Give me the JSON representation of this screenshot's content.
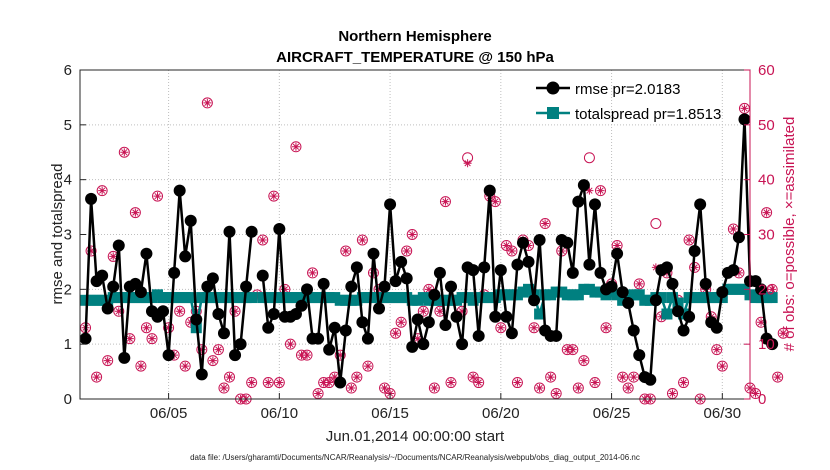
{
  "chart_data": {
    "type": "line",
    "title": "Northern Hemisphere",
    "subtitle": "AIRCRAFT_TEMPERATURE @ 150 hPa",
    "xlabel": "Jun.01,2014 00:00:00 start",
    "ylabel": "rmse and totalspread",
    "ylabel_right": "# of obs: o=possible, ×=assimilated",
    "footnote": "data file: /Users/gharamti/Documents/NCAR/Reanalysis/~/Documents/NCAR/Reanalysis/webpub/obs_diag_output_2014-06.nc",
    "xlim": [
      1.0,
      31.25
    ],
    "ylim": [
      0,
      6
    ],
    "ylim_right": [
      0,
      60
    ],
    "x_ticks": [
      5,
      10,
      15,
      20,
      25,
      30
    ],
    "x_tick_labels": [
      "06/05",
      "06/10",
      "06/15",
      "06/20",
      "06/25",
      "06/30"
    ],
    "y_ticks": [
      0,
      1,
      2,
      3,
      4,
      5,
      6
    ],
    "y_tick_labels": [
      "0",
      "1",
      "2",
      "3",
      "4",
      "5",
      "6"
    ],
    "y_ticks_right": [
      0,
      10,
      20,
      30,
      40,
      50,
      60
    ],
    "y_tick_labels_right": [
      "0",
      "10",
      "20",
      "30",
      "40",
      "50",
      "60"
    ],
    "legend": {
      "position": "top-right",
      "entries": [
        "rmse pr=2.0183",
        "totalspread pr=1.8513"
      ]
    },
    "colors": {
      "rmse": "#000000",
      "totalspread": "#008080",
      "obs": "#c81454"
    },
    "step_days": 0.25,
    "x_start": 1.25,
    "series": [
      {
        "name": "rmse",
        "values": [
          1.1,
          3.65,
          2.15,
          2.25,
          1.65,
          2.05,
          2.8,
          0.75,
          2.05,
          2.1,
          1.95,
          2.65,
          1.6,
          1.5,
          1.6,
          0.8,
          2.3,
          3.8,
          2.6,
          3.25,
          1.45,
          0.45,
          2.05,
          2.2,
          1.55,
          1.2,
          3.05,
          0.8,
          1.0,
          2.05,
          3.05,
          null,
          2.25,
          1.3,
          1.55,
          3.1,
          1.5,
          1.5,
          1.55,
          1.7,
          2.0,
          1.1,
          1.1,
          2.1,
          0.9,
          1.3,
          0.3,
          1.25,
          2.05,
          2.4,
          1.4,
          1.1,
          2.65,
          1.65,
          2.05,
          3.55,
          2.15,
          2.5,
          2.2,
          0.95,
          1.45,
          1.0,
          1.4,
          1.9,
          2.3,
          1.35,
          2.05,
          1.5,
          1.0,
          2.4,
          2.35,
          1.15,
          2.4,
          3.8,
          1.5,
          2.35,
          1.5,
          1.2,
          2.45,
          2.85,
          2.5,
          1.8,
          2.9,
          1.25,
          1.15,
          1.15,
          2.9,
          2.85,
          2.3,
          3.6,
          3.9,
          2.45,
          3.55,
          2.3,
          2.0,
          2.05,
          2.65,
          1.95,
          1.75,
          1.25,
          0.8,
          0.4,
          0.35,
          1.8,
          2.35,
          2.4,
          2.1,
          1.6,
          1.25,
          1.5,
          2.7,
          3.55,
          2.1,
          1.4,
          1.3,
          1.95,
          2.3,
          2.35,
          2.95,
          5.1,
          2.15,
          2.15,
          2.0,
          1.1,
          1.0
        ]
      },
      {
        "name": "totalspread",
        "values": [
          1.8,
          1.8,
          1.8,
          1.8,
          1.8,
          1.85,
          1.85,
          1.85,
          1.85,
          1.85,
          1.85,
          1.85,
          1.85,
          1.9,
          1.85,
          1.85,
          1.85,
          1.85,
          1.85,
          1.85,
          1.3,
          1.85,
          1.85,
          1.85,
          1.85,
          1.85,
          1.85,
          1.85,
          1.85,
          1.85,
          1.85,
          null,
          1.85,
          1.85,
          1.85,
          1.85,
          1.85,
          1.85,
          1.85,
          1.85,
          1.85,
          1.85,
          1.85,
          1.85,
          1.85,
          1.85,
          1.8,
          1.8,
          1.8,
          1.8,
          1.85,
          1.85,
          1.85,
          1.85,
          1.85,
          1.85,
          1.85,
          1.85,
          1.85,
          1.8,
          1.8,
          1.85,
          1.8,
          1.8,
          1.8,
          1.8,
          1.8,
          1.8,
          1.85,
          1.85,
          1.8,
          1.85,
          1.85,
          1.85,
          1.85,
          1.9,
          1.9,
          1.9,
          1.9,
          1.95,
          2.0,
          1.9,
          1.55,
          1.9,
          1.9,
          1.95,
          1.95,
          1.9,
          1.9,
          1.9,
          2.0,
          2.0,
          1.95,
          1.95,
          1.9,
          1.95,
          1.9,
          1.8,
          1.8,
          1.9,
          1.9,
          1.8,
          1.8,
          1.85,
          1.85,
          1.55,
          1.85,
          1.75,
          1.55,
          1.85,
          1.85,
          1.85,
          1.85,
          1.85,
          1.85,
          1.85,
          2.0,
          2.0,
          2.0,
          2.0,
          1.9,
          1.85,
          1.85,
          1.85,
          1.85
        ]
      },
      {
        "name": "obs_possible",
        "axis": "right",
        "values": [
          13,
          27,
          4,
          38,
          7,
          26,
          16,
          45,
          11,
          34,
          6,
          13,
          11,
          37,
          16,
          13,
          8,
          16,
          6,
          14,
          16,
          9,
          54,
          7,
          9,
          2,
          4,
          16,
          0,
          0,
          3,
          19,
          29,
          3,
          37,
          3,
          20,
          10,
          46,
          8,
          8,
          23,
          1,
          3,
          3,
          4,
          8,
          27,
          2,
          4,
          29,
          6,
          23,
          20,
          2,
          1,
          12,
          14,
          27,
          30,
          11,
          16,
          20,
          2,
          16,
          36,
          3,
          18,
          16,
          44,
          4,
          3,
          19,
          37,
          36,
          13,
          28,
          27,
          3,
          29,
          28,
          13,
          2,
          32,
          4,
          1,
          27,
          9,
          9,
          2,
          7,
          44,
          3,
          38,
          13,
          21,
          28,
          4,
          2,
          4,
          21,
          0,
          0,
          32,
          15,
          23,
          1,
          18,
          3,
          29,
          24,
          0,
          20,
          15,
          9,
          6,
          20,
          31,
          23,
          53,
          2,
          1,
          14,
          34,
          20,
          4,
          12
        ]
      },
      {
        "name": "obs_assimilated",
        "axis": "right",
        "values": [
          13,
          27,
          4,
          38,
          7,
          26,
          16,
          45,
          11,
          34,
          6,
          13,
          11,
          37,
          16,
          13,
          8,
          16,
          6,
          14,
          16,
          9,
          54,
          7,
          9,
          2,
          4,
          16,
          0,
          0,
          3,
          19,
          29,
          3,
          37,
          3,
          20,
          10,
          46,
          8,
          8,
          23,
          1,
          3,
          3,
          4,
          8,
          27,
          2,
          4,
          29,
          6,
          23,
          20,
          2,
          1,
          12,
          14,
          27,
          30,
          11,
          16,
          20,
          2,
          16,
          36,
          3,
          18,
          16,
          43,
          4,
          3,
          19,
          37,
          36,
          13,
          28,
          27,
          3,
          29,
          28,
          13,
          2,
          32,
          4,
          1,
          27,
          9,
          9,
          2,
          7,
          38,
          3,
          38,
          13,
          21,
          28,
          4,
          2,
          4,
          21,
          0,
          0,
          24,
          15,
          23,
          1,
          18,
          3,
          29,
          24,
          0,
          20,
          15,
          9,
          6,
          20,
          31,
          23,
          53,
          2,
          1,
          14,
          34,
          20,
          4,
          12
        ]
      }
    ]
  }
}
